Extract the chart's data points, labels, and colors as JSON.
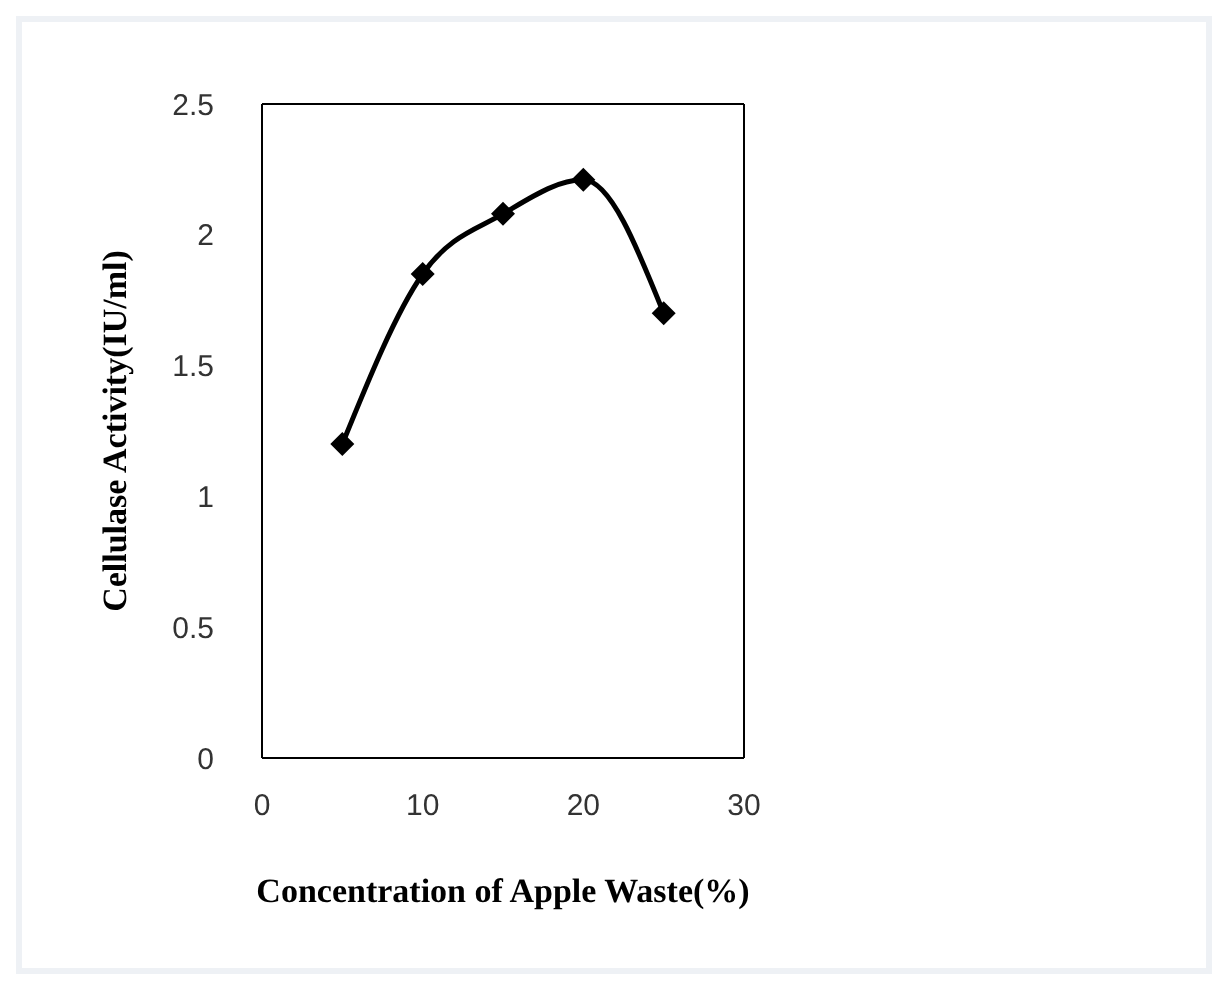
{
  "chart_data": {
    "type": "line",
    "xlabel": "Concentration of Apple Waste(%)",
    "ylabel": "Cellulase  Activity(IU/ml)",
    "x": [
      5,
      10,
      15,
      20,
      25
    ],
    "series": [
      {
        "color": "#000000",
        "values": [
          1.2,
          1.85,
          2.08,
          2.21,
          1.7
        ]
      }
    ],
    "xlim": [
      0,
      30
    ],
    "xticks": [
      0,
      10,
      20,
      30
    ],
    "ylim": [
      0,
      2.5
    ],
    "yticks": [
      0,
      0.5,
      1,
      1.5,
      2,
      2.5
    ],
    "marker": "diamond",
    "grid": false,
    "legend": false
  }
}
